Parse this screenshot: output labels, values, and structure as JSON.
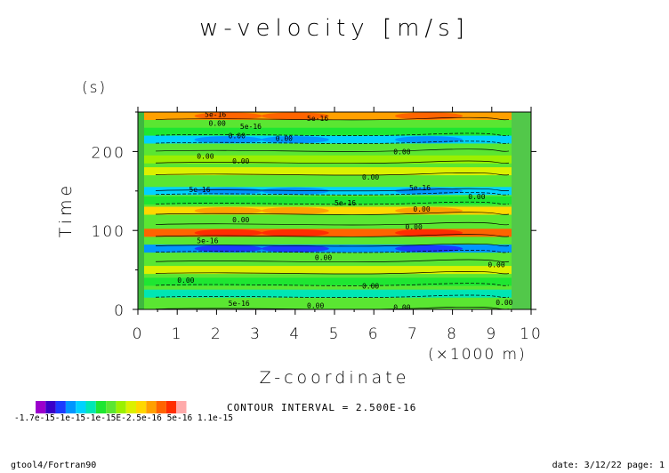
{
  "chart_data": {
    "type": "heatmap",
    "title": "w-velocity [m/s]",
    "xlabel": "Z-coordinate",
    "x_unit": "(×1000 m)",
    "ylabel": "Time",
    "y_unit": "(s)",
    "xlim": [
      0,
      10
    ],
    "ylim": [
      0,
      250
    ],
    "x_ticks": [
      "0",
      "1",
      "2",
      "3",
      "4",
      "5",
      "6",
      "7",
      "8",
      "9",
      "10"
    ],
    "y_ticks": [
      "0",
      "100",
      "200"
    ],
    "contour_interval_text": "CONTOUR INTERVAL = 2.500E-16",
    "colorbar": {
      "labels": [
        "-1.7e-15",
        "-1e-15",
        "-1e-15",
        "2.5e-16",
        "5e-16",
        "1.1e-15"
      ],
      "label_text": "-1.7e-15-1e-15-1e-15E-2.5e-16 5e-16 1.1e-15",
      "colors": [
        "#9b00cc",
        "#3a00c8",
        "#1b3bff",
        "#0096ff",
        "#00d2ff",
        "#00e6b4",
        "#1ee632",
        "#5ae632",
        "#9bf000",
        "#dcf000",
        "#ffd700",
        "#ffa000",
        "#ff6400",
        "#ff2d00",
        "#ffaaaa"
      ]
    },
    "bands": [
      {
        "t": 245,
        "level": 11
      },
      {
        "t": 225,
        "level": 6
      },
      {
        "t": 215,
        "level": 4
      },
      {
        "t": 205,
        "level": 7
      },
      {
        "t": 190,
        "level": 8
      },
      {
        "t": 175,
        "level": 9
      },
      {
        "t": 155,
        "level": 7
      },
      {
        "t": 150,
        "level": 4
      },
      {
        "t": 138,
        "level": 6
      },
      {
        "t": 125,
        "level": 10
      },
      {
        "t": 112,
        "level": 7
      },
      {
        "t": 97,
        "level": 12
      },
      {
        "t": 85,
        "level": 7
      },
      {
        "t": 77,
        "level": 3
      },
      {
        "t": 65,
        "level": 7
      },
      {
        "t": 50,
        "level": 9
      },
      {
        "t": 35,
        "level": 6
      },
      {
        "t": 20,
        "level": 5
      },
      {
        "t": 5,
        "level": 7
      }
    ],
    "contour_labels": [
      {
        "x": 1.7,
        "t": 247,
        "text": "5e-16"
      },
      {
        "x": 4.3,
        "t": 242,
        "text": "5e-16"
      },
      {
        "x": 1.8,
        "t": 236,
        "text": "0.00"
      },
      {
        "x": 2.6,
        "t": 232,
        "text": "5e-16"
      },
      {
        "x": 2.3,
        "t": 220,
        "text": "0.00"
      },
      {
        "x": 3.5,
        "t": 217,
        "text": "0.00"
      },
      {
        "x": 1.5,
        "t": 194,
        "text": "0.00"
      },
      {
        "x": 6.5,
        "t": 200,
        "text": "0.00"
      },
      {
        "x": 2.4,
        "t": 188,
        "text": "0.00"
      },
      {
        "x": 5.7,
        "t": 168,
        "text": "0.00"
      },
      {
        "x": 1.3,
        "t": 152,
        "text": "5e-16"
      },
      {
        "x": 6.9,
        "t": 154,
        "text": "5e-16"
      },
      {
        "x": 8.4,
        "t": 143,
        "text": "0.00"
      },
      {
        "x": 5.0,
        "t": 135,
        "text": "5e-16"
      },
      {
        "x": 7.0,
        "t": 127,
        "text": "0.00"
      },
      {
        "x": 2.4,
        "t": 114,
        "text": "0.00"
      },
      {
        "x": 6.8,
        "t": 105,
        "text": "0.00"
      },
      {
        "x": 1.5,
        "t": 87,
        "text": "5e-16"
      },
      {
        "x": 4.5,
        "t": 66,
        "text": "0.00"
      },
      {
        "x": 8.9,
        "t": 57,
        "text": "0.00"
      },
      {
        "x": 1.0,
        "t": 37,
        "text": "0.00"
      },
      {
        "x": 5.7,
        "t": 30,
        "text": "0.00"
      },
      {
        "x": 2.3,
        "t": 8,
        "text": "5e-16"
      },
      {
        "x": 4.3,
        "t": 5,
        "text": "0.00"
      },
      {
        "x": 6.5,
        "t": 3,
        "text": "0.00"
      },
      {
        "x": 9.1,
        "t": 9,
        "text": "0.00"
      }
    ]
  },
  "footer": {
    "left": "gtool4/Fortran90",
    "right": "date: 3/12/22 page: 1"
  }
}
